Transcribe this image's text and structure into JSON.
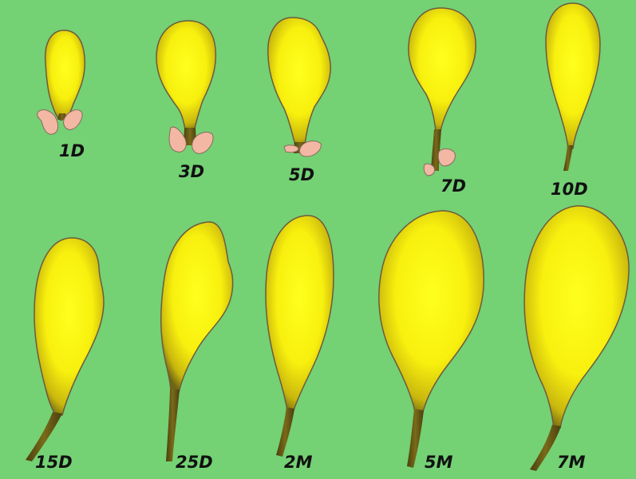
{
  "background_color": "#74d174",
  "colors": {
    "body_fill": "#f3ea18",
    "outline": "#6e5a3c",
    "stalk": "#5b4e12",
    "pink": "#f2b8a4"
  },
  "stages": [
    {
      "label": "1D"
    },
    {
      "label": "3D"
    },
    {
      "label": "5D"
    },
    {
      "label": "7D"
    },
    {
      "label": "10D"
    },
    {
      "label": "15D"
    },
    {
      "label": "25D"
    },
    {
      "label": "2M"
    },
    {
      "label": "5M"
    },
    {
      "label": "7M"
    }
  ]
}
